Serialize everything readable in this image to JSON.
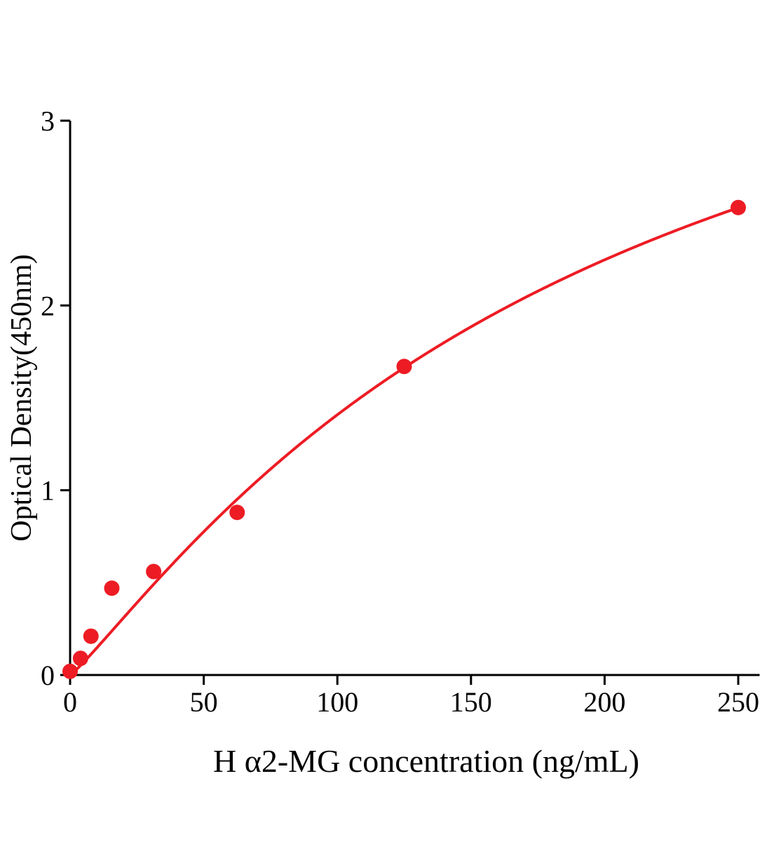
{
  "chart_data": {
    "type": "scatter",
    "title": "",
    "xlabel": "H α2-MG concentration (ng/mL)",
    "ylabel": "Optical Density(450nm)",
    "xlim": [
      0,
      258
    ],
    "ylim": [
      0,
      3
    ],
    "xticks": [
      0,
      50,
      100,
      150,
      200,
      250
    ],
    "yticks": [
      0,
      1,
      2,
      3
    ],
    "points": [
      {
        "x": 0,
        "y": 0.02
      },
      {
        "x": 3.9,
        "y": 0.09
      },
      {
        "x": 7.8,
        "y": 0.21
      },
      {
        "x": 15.6,
        "y": 0.47
      },
      {
        "x": 31.25,
        "y": 0.56
      },
      {
        "x": 62.5,
        "y": 0.88
      },
      {
        "x": 125,
        "y": 1.67
      },
      {
        "x": 250,
        "y": 2.53
      }
    ],
    "fit": {
      "type": "4pl",
      "a": 0,
      "d": 4.5,
      "c": 200.5,
      "b": 1.13,
      "x_min": 0,
      "x_max": 250
    },
    "colors": {
      "series": "#ed1c24",
      "axis": "#000000"
    },
    "grid": false,
    "legend": null,
    "marker_radius": 11,
    "curve_width": 4
  }
}
